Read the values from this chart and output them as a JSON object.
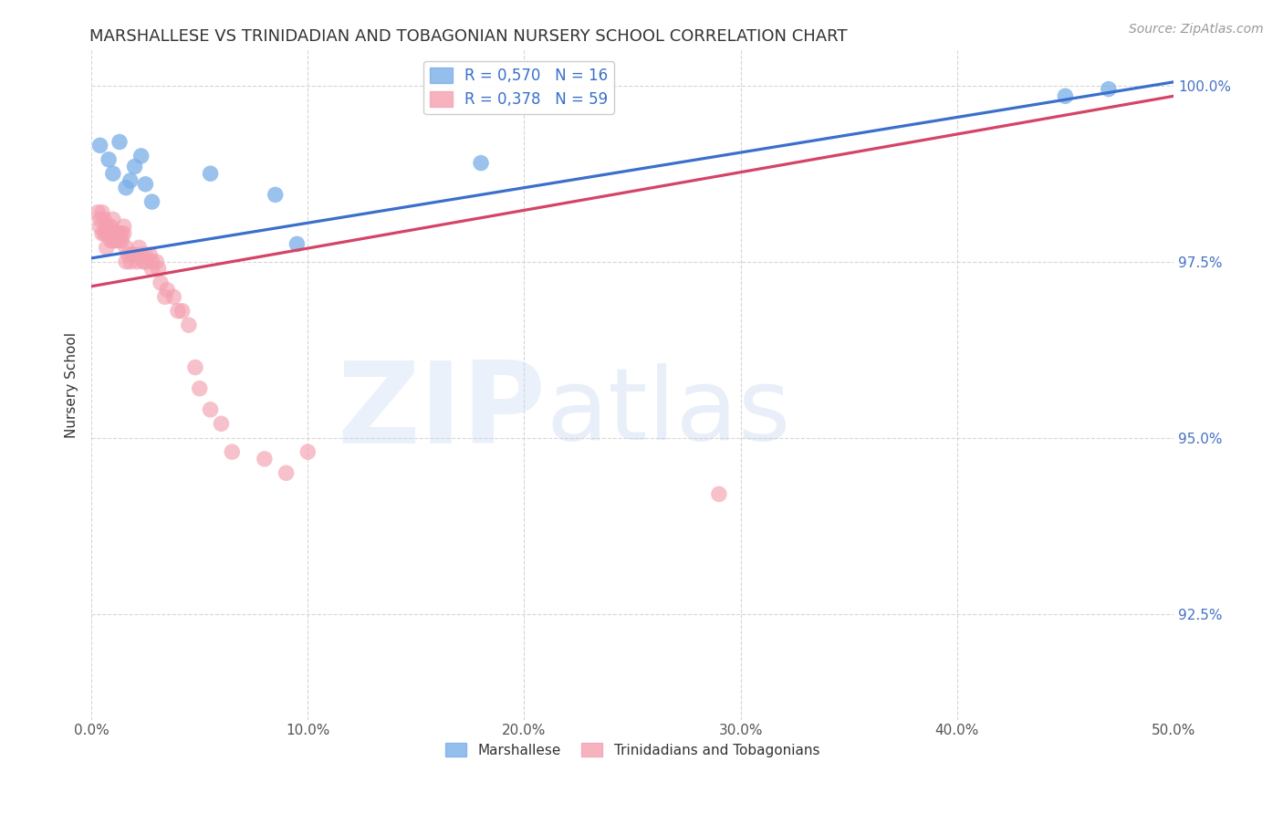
{
  "title": "MARSHALLESE VS TRINIDADIAN AND TOBAGONIAN NURSERY SCHOOL CORRELATION CHART",
  "source": "Source: ZipAtlas.com",
  "ylabel": "Nursery School",
  "xlim": [
    0.0,
    0.5
  ],
  "ylim": [
    0.91,
    1.005
  ],
  "xticks": [
    0.0,
    0.1,
    0.2,
    0.3,
    0.4,
    0.5
  ],
  "xticklabels": [
    "0.0%",
    "10.0%",
    "20.0%",
    "30.0%",
    "40.0%",
    "50.0%"
  ],
  "yticks": [
    0.925,
    0.95,
    0.975,
    1.0
  ],
  "yticklabels": [
    "92.5%",
    "95.0%",
    "97.5%",
    "100.0%"
  ],
  "ytick_color": "#4472c4",
  "blue_color": "#7aaee8",
  "pink_color": "#f4a0b0",
  "blue_line_color": "#3a6fcc",
  "pink_line_color": "#d44466",
  "watermark_text": "ZIPatlas",
  "grid_color": "#cccccc",
  "background_color": "#ffffff",
  "title_fontsize": 13,
  "axis_label_fontsize": 11,
  "tick_fontsize": 11,
  "legend_fontsize": 12,
  "blue_trendline_x0": 0.0,
  "blue_trendline_y0": 0.9755,
  "blue_trendline_x1": 0.5,
  "blue_trendline_y1": 1.0005,
  "pink_trendline_x0": 0.0,
  "pink_trendline_y0": 0.9715,
  "pink_trendline_x1": 0.5,
  "pink_trendline_y1": 0.9985,
  "blue_x": [
    0.004,
    0.008,
    0.01,
    0.013,
    0.016,
    0.018,
    0.02,
    0.023,
    0.025,
    0.028,
    0.055,
    0.085,
    0.095,
    0.18,
    0.45,
    0.47
  ],
  "blue_y": [
    0.9915,
    0.9895,
    0.9875,
    0.992,
    0.9855,
    0.9865,
    0.9885,
    0.99,
    0.986,
    0.9835,
    0.9875,
    0.9845,
    0.9775,
    0.989,
    0.9985,
    0.9995
  ],
  "pink_x": [
    0.003,
    0.004,
    0.004,
    0.005,
    0.005,
    0.006,
    0.006,
    0.007,
    0.007,
    0.007,
    0.008,
    0.008,
    0.009,
    0.009,
    0.01,
    0.01,
    0.01,
    0.011,
    0.012,
    0.012,
    0.013,
    0.013,
    0.014,
    0.014,
    0.015,
    0.015,
    0.016,
    0.016,
    0.017,
    0.018,
    0.019,
    0.02,
    0.021,
    0.022,
    0.023,
    0.024,
    0.025,
    0.025,
    0.027,
    0.028,
    0.028,
    0.03,
    0.031,
    0.032,
    0.034,
    0.035,
    0.038,
    0.04,
    0.042,
    0.045,
    0.048,
    0.05,
    0.055,
    0.06,
    0.065,
    0.08,
    0.09,
    0.1,
    0.29
  ],
  "pink_y": [
    0.982,
    0.981,
    0.98,
    0.982,
    0.979,
    0.981,
    0.979,
    0.98,
    0.979,
    0.977,
    0.98,
    0.979,
    0.98,
    0.978,
    0.981,
    0.979,
    0.978,
    0.978,
    0.979,
    0.978,
    0.979,
    0.978,
    0.979,
    0.978,
    0.979,
    0.98,
    0.977,
    0.975,
    0.976,
    0.975,
    0.976,
    0.976,
    0.975,
    0.977,
    0.976,
    0.975,
    0.976,
    0.975,
    0.976,
    0.975,
    0.974,
    0.975,
    0.974,
    0.972,
    0.97,
    0.971,
    0.97,
    0.968,
    0.968,
    0.966,
    0.96,
    0.957,
    0.954,
    0.952,
    0.948,
    0.947,
    0.945,
    0.948,
    0.942
  ]
}
